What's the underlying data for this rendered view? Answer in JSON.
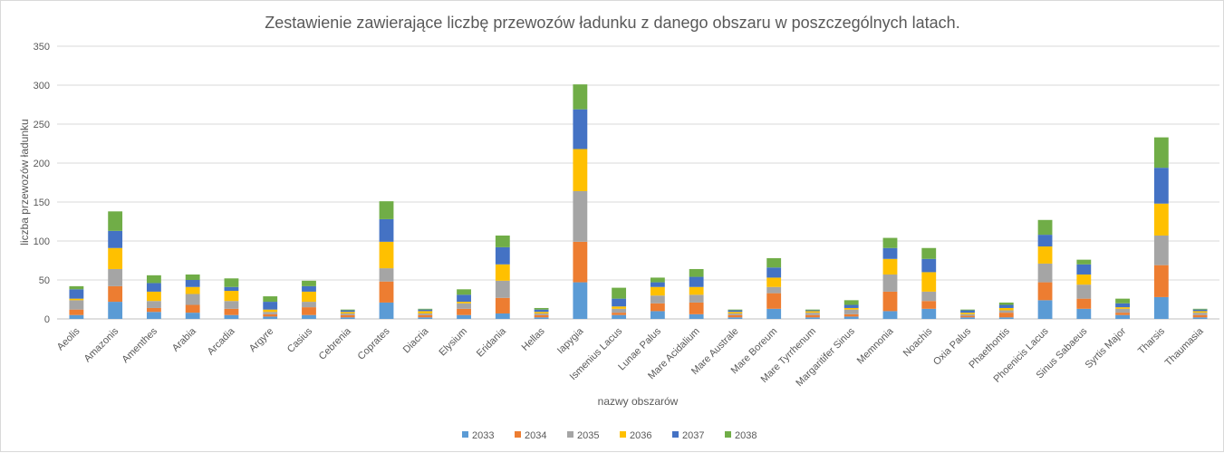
{
  "chart_data": {
    "type": "bar",
    "stacked": true,
    "title": "Zestawienie zawierające liczbę przewozów ładunku z danego obszaru w poszczególnych latach.",
    "xlabel": "nazwy obszarów",
    "ylabel": "liczba przewozów ładunku",
    "ylim": [
      0,
      350
    ],
    "yticks": [
      0,
      50,
      100,
      150,
      200,
      250,
      300,
      350
    ],
    "grid": true,
    "legend_position": "bottom",
    "categories": [
      "Aeolis",
      "Amazonis",
      "Amenthes",
      "Arabia",
      "Arcadia",
      "Argyre",
      "Casius",
      "Cebrenia",
      "Coprates",
      "Diacria",
      "Elysium",
      "Eridania",
      "Hellas",
      "Iapygia",
      "Ismenius Lacus",
      "Lunae Palus",
      "Mare Acidalium",
      "Mare Australe",
      "Mare Boreum",
      "Mare Tyrrhenum",
      "Margaritifer Sinus",
      "Memnonia",
      "Noachis",
      "Oxia Palus",
      "Phaethontis",
      "Phoenicis Lacus",
      "Sinus Sabaeus",
      "Syrtis Major",
      "Tharsis",
      "Thaumasia"
    ],
    "series": [
      {
        "name": "2033",
        "color": "#5b9bd5",
        "values": [
          5,
          22,
          9,
          8,
          5,
          3,
          5,
          2,
          21,
          2,
          5,
          7,
          2,
          47,
          5,
          10,
          6,
          2,
          13,
          2,
          3,
          10,
          13,
          2,
          2,
          24,
          13,
          5,
          28,
          2
        ]
      },
      {
        "name": "2034",
        "color": "#ed7d31",
        "values": [
          7,
          20,
          5,
          10,
          8,
          3,
          10,
          3,
          27,
          3,
          8,
          20,
          3,
          52,
          3,
          10,
          15,
          3,
          20,
          3,
          3,
          25,
          10,
          2,
          6,
          23,
          13,
          3,
          41,
          3
        ]
      },
      {
        "name": "2035",
        "color": "#a5a5a5",
        "values": [
          12,
          22,
          9,
          14,
          10,
          3,
          7,
          2,
          17,
          2,
          7,
          22,
          2,
          65,
          5,
          10,
          10,
          2,
          8,
          3,
          6,
          22,
          12,
          2,
          3,
          24,
          18,
          5,
          38,
          3
        ]
      },
      {
        "name": "2036",
        "color": "#ffc000",
        "values": [
          2,
          27,
          12,
          9,
          13,
          3,
          13,
          2,
          34,
          3,
          2,
          21,
          2,
          54,
          3,
          11,
          10,
          2,
          12,
          2,
          2,
          20,
          25,
          2,
          3,
          22,
          13,
          2,
          41,
          2
        ]
      },
      {
        "name": "2037",
        "color": "#4472c4",
        "values": [
          12,
          22,
          11,
          9,
          5,
          10,
          7,
          2,
          29,
          2,
          9,
          22,
          3,
          51,
          10,
          6,
          13,
          2,
          13,
          1,
          4,
          14,
          17,
          3,
          4,
          15,
          13,
          5,
          46,
          2
        ]
      },
      {
        "name": "2038",
        "color": "#70ad47",
        "values": [
          4,
          25,
          10,
          7,
          11,
          7,
          7,
          1,
          23,
          1,
          7,
          15,
          2,
          32,
          14,
          6,
          10,
          1,
          12,
          1,
          6,
          13,
          14,
          1,
          3,
          19,
          6,
          6,
          39,
          1
        ]
      }
    ]
  }
}
